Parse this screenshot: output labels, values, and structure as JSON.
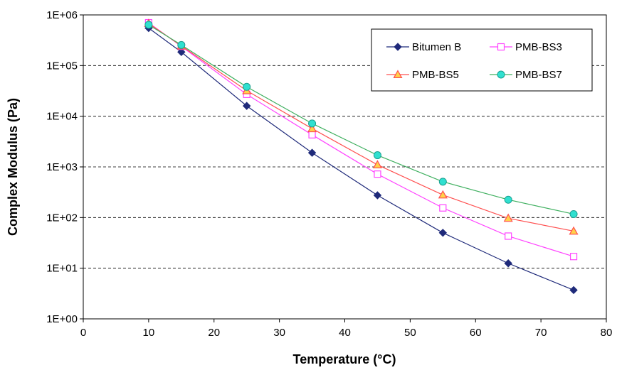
{
  "chart_data": {
    "type": "line",
    "title": "",
    "xlabel": "Temperature (°C)",
    "ylabel": "Complex Modulus (Pa)",
    "x_scale": "linear",
    "y_scale": "log",
    "xlim": [
      0,
      80
    ],
    "ylim": [
      1,
      1000000
    ],
    "x_ticks": [
      "0",
      "10",
      "20",
      "30",
      "40",
      "50",
      "60",
      "70",
      "80"
    ],
    "y_ticks": [
      "1E+00",
      "1E+01",
      "1E+02",
      "1E+03",
      "1E+04",
      "1E+05",
      "1E+06"
    ],
    "grid": "horizontal dashed",
    "legend_position": "top-right",
    "x": [
      10,
      15,
      25,
      35,
      45,
      55,
      65,
      75
    ],
    "series": [
      {
        "name": "Bitumen B",
        "color": "#1f2a7a",
        "marker": "diamond",
        "values": [
          550000,
          185000,
          16000,
          1900,
          275,
          50,
          12.5,
          3.7
        ]
      },
      {
        "name": "PMB-BS3",
        "color": "#ff44ff",
        "marker": "open-square",
        "values": [
          700000,
          240000,
          27000,
          4300,
          720,
          155,
          43,
          17
        ]
      },
      {
        "name": "PMB-BS5",
        "color": "#ff5050",
        "marker": "triangle",
        "values": [
          680000,
          245000,
          32000,
          5700,
          1100,
          280,
          97,
          54
        ]
      },
      {
        "name": "PMB-BS7",
        "color": "#40b060",
        "marker": "circle",
        "values": [
          640000,
          255000,
          38000,
          7200,
          1700,
          510,
          225,
          117
        ]
      }
    ]
  }
}
